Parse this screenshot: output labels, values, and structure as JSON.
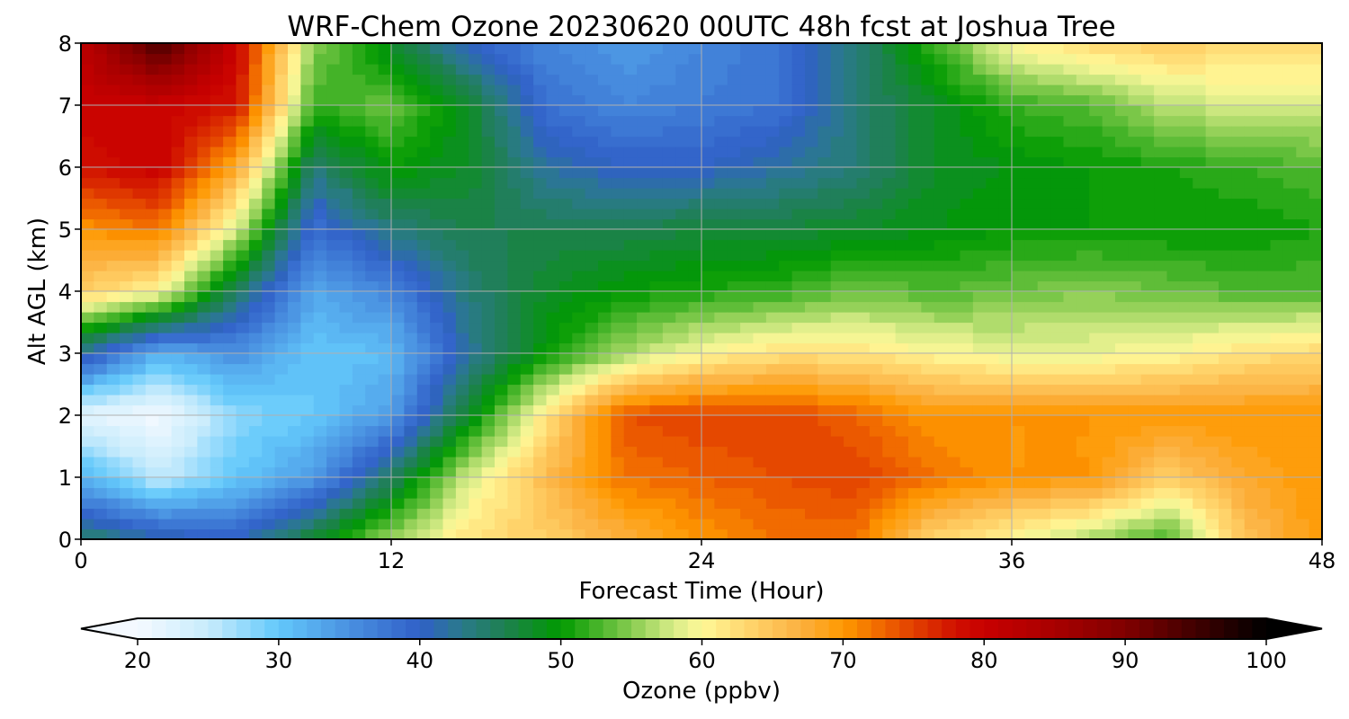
{
  "chart_data": {
    "type": "heatmap",
    "title": "WRF-Chem Ozone  20230620 00UTC 48h fcst at Joshua Tree",
    "xlabel": "Forecast Time (Hour)",
    "ylabel": "Alt AGL (km)",
    "xlim": [
      0,
      48
    ],
    "ylim": [
      0,
      8
    ],
    "xticks": [
      0,
      12,
      24,
      36,
      48
    ],
    "yticks": [
      0,
      1,
      2,
      3,
      4,
      5,
      6,
      7,
      8
    ],
    "grid": true,
    "x": [
      0,
      3,
      6,
      9,
      12,
      15,
      18,
      21,
      24,
      27,
      30,
      33,
      36,
      39,
      42,
      45,
      48
    ],
    "y": [
      0,
      1,
      2,
      3,
      4,
      5,
      6,
      7,
      8
    ],
    "z_by_x": [
      [
        45,
        32,
        22,
        42,
        64,
        70,
        78,
        80,
        82
      ],
      [
        42,
        25,
        20,
        32,
        60,
        72,
        80,
        80,
        95
      ],
      [
        40,
        30,
        28,
        35,
        45,
        58,
        68,
        78,
        80
      ],
      [
        48,
        34,
        30,
        30,
        33,
        38,
        44,
        52,
        55
      ],
      [
        56,
        45,
        34,
        31,
        36,
        44,
        50,
        54,
        48
      ],
      [
        62,
        58,
        48,
        42,
        44,
        46,
        48,
        48,
        40
      ],
      [
        64,
        66,
        62,
        50,
        48,
        46,
        42,
        38,
        36
      ],
      [
        67,
        72,
        74,
        56,
        50,
        46,
        40,
        36,
        34
      ],
      [
        70,
        73,
        75,
        60,
        51,
        47,
        40,
        37,
        36
      ],
      [
        72,
        74,
        75,
        62,
        52,
        47,
        42,
        38,
        38
      ],
      [
        72,
        75,
        73,
        62,
        54,
        48,
        44,
        44,
        44
      ],
      [
        63,
        72,
        70,
        60,
        53,
        49,
        48,
        48,
        52
      ],
      [
        60,
        70,
        70,
        59,
        54,
        50,
        49,
        52,
        60
      ],
      [
        56,
        70,
        70,
        59,
        55,
        50,
        50,
        53,
        63
      ],
      [
        52,
        64,
        70,
        60,
        54,
        50,
        51,
        57,
        64
      ],
      [
        65,
        68,
        70,
        62,
        53,
        50,
        52,
        58,
        63
      ],
      [
        70,
        70,
        70,
        63,
        53,
        51,
        53,
        58,
        63
      ]
    ],
    "colorbar": {
      "label": "Ozone  (ppbv)",
      "range": [
        20,
        100
      ],
      "ticks": [
        20,
        30,
        40,
        50,
        60,
        70,
        80,
        90,
        100
      ],
      "extend": "both",
      "stops": [
        [
          20,
          "#f4f9ff"
        ],
        [
          25,
          "#c8ecfc"
        ],
        [
          30,
          "#62c8fb"
        ],
        [
          35,
          "#4a90e0"
        ],
        [
          40,
          "#3060c8"
        ],
        [
          43,
          "#2a7a8a"
        ],
        [
          46,
          "#1e8050"
        ],
        [
          50,
          "#009a00"
        ],
        [
          55,
          "#88cc50"
        ],
        [
          58,
          "#d8ec88"
        ],
        [
          60,
          "#fff898"
        ],
        [
          63,
          "#ffd870"
        ],
        [
          67,
          "#fbb040"
        ],
        [
          70,
          "#ff9900"
        ],
        [
          74,
          "#e85000"
        ],
        [
          78,
          "#d01000"
        ],
        [
          80,
          "#c80000"
        ],
        [
          85,
          "#a80000"
        ],
        [
          90,
          "#800000"
        ],
        [
          95,
          "#400000"
        ],
        [
          100,
          "#000000"
        ]
      ]
    }
  }
}
